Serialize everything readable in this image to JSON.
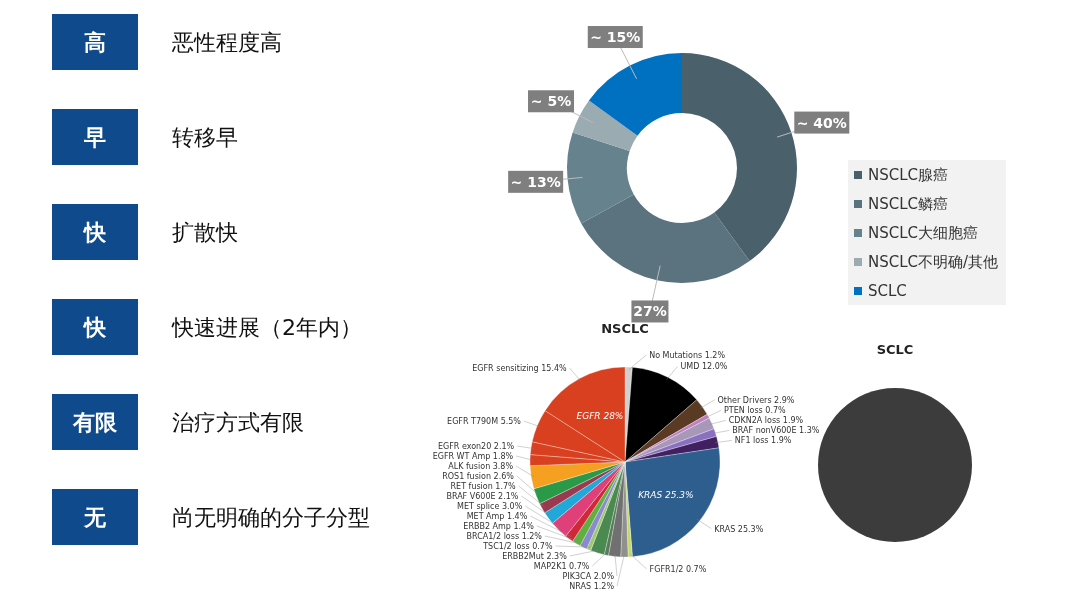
{
  "chart_data": [
    {
      "type": "other",
      "annotations": [
        "高",
        "恶性程度高",
        "早",
        "转移早",
        "快",
        "扩散快",
        "快",
        "快速进展（2年内）",
        "有限",
        "治疗方式有限",
        "无",
        "尚无明确的分子分型"
      ]
    },
    {
      "type": "donut",
      "categories": [
        "NSCLC腺癌",
        "NSCLC鳞癌",
        "NSCLC大细胞癌",
        "NSCLC不明确/其他",
        "SCLC"
      ],
      "values": [
        40,
        27,
        13,
        5,
        15
      ],
      "colors": [
        "#4a606a",
        "#5a737e",
        "#66838d",
        "#9aabb2",
        "#0070c0"
      ],
      "value_labels": [
        "~ 40%",
        "27%",
        "~ 13%",
        "~ 5%",
        "~ 15%"
      ],
      "legend": "right"
    },
    {
      "type": "pie",
      "title": "NSCLC",
      "categories": [
        "No Mutations",
        "UMD",
        "Other Drivers",
        "PTEN loss",
        "CDKN2A loss",
        "BRAF nonV600E",
        "NF1 loss",
        "KRAS",
        "FGFR1/2",
        "NRAS",
        "PIK3CA",
        "MAP2K1",
        "ERBB2Mut",
        "TSC1/2 loss",
        "BRCA1/2 loss",
        "ERBB2 Amp",
        "MET Amp",
        "MET splice",
        "BRAF V600E",
        "RET fusion",
        "ROS1 fusion",
        "ALK fusion",
        "EGFR WT Amp",
        "EGFR exon20",
        "EGFR T790M",
        "EGFR sensitizing"
      ],
      "values": [
        1.2,
        12.0,
        2.9,
        0.7,
        1.9,
        1.3,
        1.9,
        25.3,
        0.7,
        1.2,
        2.0,
        0.7,
        2.3,
        0.7,
        1.2,
        1.4,
        1.4,
        3.0,
        2.1,
        1.7,
        2.6,
        3.8,
        1.8,
        2.1,
        5.5,
        15.4
      ],
      "colors": [
        "#d0d0d0",
        "#000000",
        "#5a3a22",
        "#c080c0",
        "#a898b8",
        "#8a70c0",
        "#402060",
        "#2e5e8e",
        "#c8d870",
        "#909090",
        "#707070",
        "#5a7a5a",
        "#4a8a50",
        "#a0c870",
        "#8a8ad0",
        "#60b040",
        "#d02838",
        "#e0407a",
        "#20a8d8",
        "#9a3a50",
        "#2a9a48",
        "#f5a020",
        "#d84020",
        "#d84020",
        "#d84020",
        "#d84020"
      ],
      "value_labels": [
        "1.2%",
        "12.0%",
        "2.9%",
        "0.7%",
        "1.9%",
        "1.3%",
        "1.9%",
        "25.3%",
        "0.7%",
        "1.2%",
        "2.0%",
        "0.7%",
        "2.3%",
        "0.7%",
        "1.2%",
        "1.4%",
        "1.4%",
        "3.0%",
        "2.1%",
        "1.7%",
        "2.6%",
        "3.8%",
        "1.8%",
        "2.1%",
        "5.5%",
        "15.4%"
      ],
      "annotations": [
        {
          "text": "EGFR 28%",
          "x": "EGFR sensitizing"
        },
        {
          "text": "KRAS 25.3%",
          "x": "KRAS"
        }
      ]
    },
    {
      "type": "pie",
      "title": "SCLC",
      "categories": [
        null
      ],
      "values": [
        100
      ],
      "colors": [
        "#3c3c3c"
      ]
    }
  ]
}
